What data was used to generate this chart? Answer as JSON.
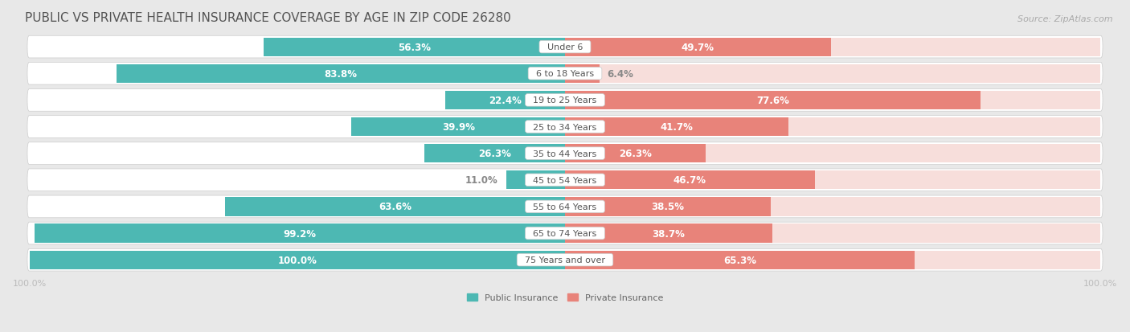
{
  "title": "PUBLIC VS PRIVATE HEALTH INSURANCE COVERAGE BY AGE IN ZIP CODE 26280",
  "source": "Source: ZipAtlas.com",
  "categories": [
    "Under 6",
    "6 to 18 Years",
    "19 to 25 Years",
    "25 to 34 Years",
    "35 to 44 Years",
    "45 to 54 Years",
    "55 to 64 Years",
    "65 to 74 Years",
    "75 Years and over"
  ],
  "public_values": [
    56.3,
    83.8,
    22.4,
    39.9,
    26.3,
    11.0,
    63.6,
    99.2,
    100.0
  ],
  "private_values": [
    49.7,
    6.4,
    77.6,
    41.7,
    26.3,
    46.7,
    38.5,
    38.7,
    65.3
  ],
  "public_color": "#4db8b3",
  "private_color": "#e8837a",
  "private_bg_color": "#f5d0cc",
  "row_bg_color": "#f5f5f5",
  "outer_bg_color": "#e8e8e8",
  "title_color": "#555555",
  "label_white": "#ffffff",
  "label_dark": "#888888",
  "center_label_color": "#888888",
  "axis_label_color": "#bbbbbb",
  "max_value": 100.0,
  "title_fontsize": 11,
  "source_fontsize": 8,
  "bar_label_fontsize": 8.5,
  "category_fontsize": 8,
  "legend_fontsize": 8,
  "axis_fontsize": 8,
  "white_threshold_pub": 18,
  "white_threshold_priv": 15
}
